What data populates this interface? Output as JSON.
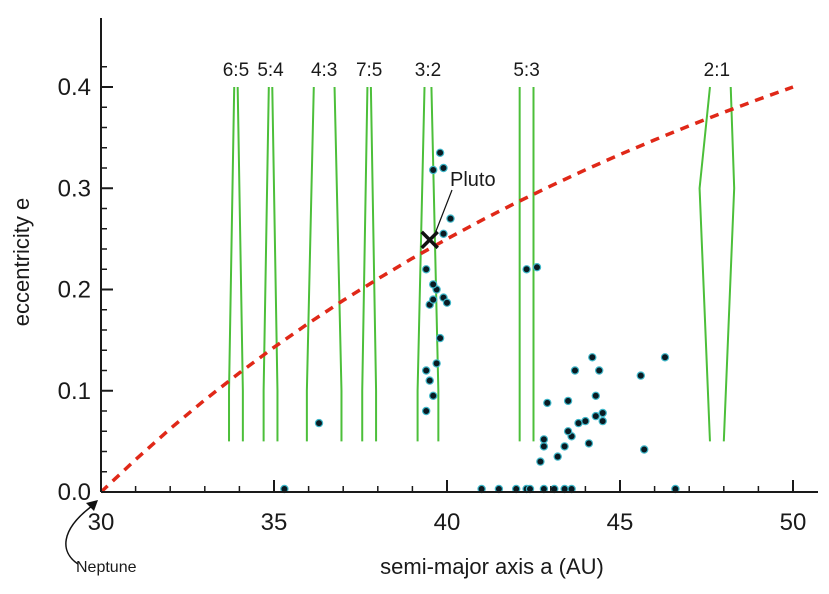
{
  "chart_data": {
    "type": "scatter",
    "xlabel": "semi-major axis a (AU)",
    "ylabel": "eccentricity e",
    "xlim": [
      30,
      51
    ],
    "ylim": [
      0,
      0.46
    ],
    "x_ticks": [
      "30",
      "35",
      "40",
      "45",
      "50"
    ],
    "y_ticks": [
      "0.0",
      "0.1",
      "0.2",
      "0.3",
      "0.4"
    ],
    "grid": false,
    "colors": {
      "objects": "#0a1a22",
      "objects_edge": "#3fb6c8",
      "resonance": "#4cbf3a",
      "curve": "#e02818",
      "axis": "#1a1a1a"
    },
    "series": [
      {
        "kind": "objects",
        "points": [
          [
            35.3,
            0.003
          ],
          [
            36.3,
            0.068
          ],
          [
            39.4,
            0.08
          ],
          [
            39.5,
            0.11
          ],
          [
            39.6,
            0.095
          ],
          [
            39.4,
            0.12
          ],
          [
            39.7,
            0.127
          ],
          [
            39.8,
            0.152
          ],
          [
            39.5,
            0.185
          ],
          [
            39.6,
            0.19
          ],
          [
            39.9,
            0.192
          ],
          [
            40.0,
            0.187
          ],
          [
            39.7,
            0.2
          ],
          [
            39.6,
            0.205
          ],
          [
            39.4,
            0.22
          ],
          [
            40.1,
            0.27
          ],
          [
            39.6,
            0.318
          ],
          [
            39.8,
            0.335
          ],
          [
            39.9,
            0.32
          ],
          [
            39.9,
            0.255
          ],
          [
            42.3,
            0.22
          ],
          [
            42.6,
            0.222
          ],
          [
            41.0,
            0.003
          ],
          [
            41.5,
            0.003
          ],
          [
            42.0,
            0.003
          ],
          [
            42.3,
            0.003
          ],
          [
            42.4,
            0.003
          ],
          [
            42.8,
            0.003
          ],
          [
            43.1,
            0.003
          ],
          [
            43.4,
            0.003
          ],
          [
            43.6,
            0.003
          ],
          [
            42.7,
            0.03
          ],
          [
            42.8,
            0.045
          ],
          [
            42.8,
            0.052
          ],
          [
            43.2,
            0.035
          ],
          [
            43.4,
            0.045
          ],
          [
            43.6,
            0.055
          ],
          [
            43.5,
            0.06
          ],
          [
            43.8,
            0.068
          ],
          [
            44.0,
            0.07
          ],
          [
            44.3,
            0.075
          ],
          [
            44.5,
            0.07
          ],
          [
            44.5,
            0.078
          ],
          [
            44.1,
            0.048
          ],
          [
            42.9,
            0.088
          ],
          [
            43.5,
            0.09
          ],
          [
            43.7,
            0.12
          ],
          [
            44.4,
            0.12
          ],
          [
            44.2,
            0.133
          ],
          [
            44.3,
            0.095
          ],
          [
            45.6,
            0.115
          ],
          [
            46.3,
            0.133
          ],
          [
            45.7,
            0.042
          ],
          [
            46.6,
            0.003
          ]
        ]
      },
      {
        "kind": "curve",
        "x": [
          30,
          31,
          32,
          33,
          34,
          35,
          36,
          37,
          38,
          39,
          40,
          41,
          42,
          43,
          44,
          45,
          46,
          47,
          48,
          49,
          50
        ],
        "y": [
          0.0,
          0.032,
          0.0625,
          0.091,
          0.1176,
          0.1429,
          0.1667,
          0.1892,
          0.2105,
          0.2308,
          0.25,
          0.2683,
          0.2857,
          0.3023,
          0.3182,
          0.3333,
          0.3478,
          0.3617,
          0.375,
          0.3878,
          0.4
        ]
      }
    ],
    "resonances": [
      {
        "label": "6:5",
        "a": 33.9,
        "halfwidth_low": 0.2,
        "halfwidth_high": 0.05
      },
      {
        "label": "5:4",
        "a": 34.9,
        "halfwidth_low": 0.2,
        "halfwidth_high": 0.05
      },
      {
        "label": "4:3",
        "a": 36.45,
        "halfwidth_low": 0.5,
        "halfwidth_high": 0.3
      },
      {
        "label": "7:5",
        "a": 37.75,
        "halfwidth_low": 0.2,
        "halfwidth_high": 0.05
      },
      {
        "label": "3:2",
        "a": 39.45,
        "halfwidth_low": 0.3,
        "halfwidth_high": 0.1
      },
      {
        "label": "5:3",
        "a": 42.3,
        "halfwidth_low": 0.2,
        "halfwidth_high": 0.2
      },
      {
        "label": "2:1",
        "a": 47.8,
        "halfwidth_low": 0.2,
        "halfwidth_high": 0.5
      }
    ],
    "annotations": {
      "pluto_label": "Pluto",
      "pluto_point": [
        39.5,
        0.249
      ],
      "neptune_label": "Neptune"
    }
  }
}
